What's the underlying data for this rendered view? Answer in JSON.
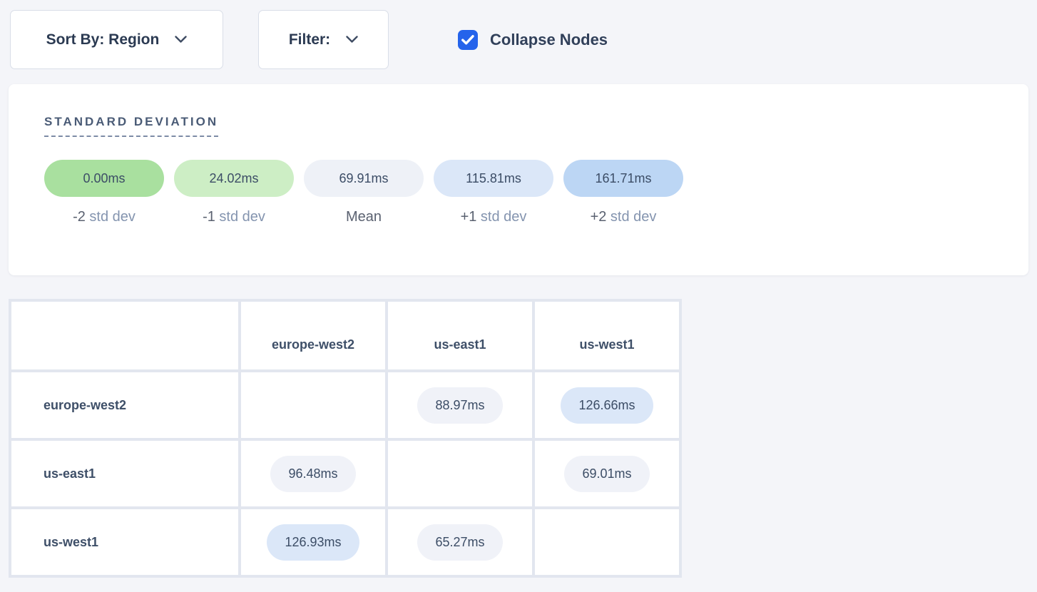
{
  "toolbar": {
    "sort_button": "Sort By: Region",
    "filter_button": "Filter:",
    "collapse_checkbox": {
      "label": "Collapse Nodes",
      "checked": true
    }
  },
  "legend": {
    "title": "STANDARD DEVIATION",
    "items": [
      {
        "value": "0.00ms",
        "bg": "#a9e09f",
        "label_strong": "-2",
        "label_muted": "std dev"
      },
      {
        "value": "24.02ms",
        "bg": "#cdeec5",
        "label_strong": "-1",
        "label_muted": "std dev"
      },
      {
        "value": "69.91ms",
        "bg": "#eef1f7",
        "label_strong": "Mean",
        "label_muted": ""
      },
      {
        "value": "115.81ms",
        "bg": "#dbe7f8",
        "label_strong": "+1",
        "label_muted": "std dev"
      },
      {
        "value": "161.71ms",
        "bg": "#bcd6f4",
        "label_strong": "+2",
        "label_muted": "std dev"
      }
    ]
  },
  "matrix": {
    "columns": [
      "europe-west2",
      "us-east1",
      "us-west1"
    ],
    "rows": [
      {
        "label": "europe-west2",
        "cells": [
          null,
          {
            "value": "88.97ms",
            "bg": "#f0f2f8"
          },
          {
            "value": "126.66ms",
            "bg": "#dbe7f8"
          }
        ]
      },
      {
        "label": "us-east1",
        "cells": [
          {
            "value": "96.48ms",
            "bg": "#f0f2f8"
          },
          null,
          {
            "value": "69.01ms",
            "bg": "#f0f2f8"
          }
        ]
      },
      {
        "label": "us-west1",
        "cells": [
          {
            "value": "126.93ms",
            "bg": "#dbe7f8"
          },
          {
            "value": "65.27ms",
            "bg": "#f0f2f8"
          },
          null
        ]
      }
    ]
  },
  "colors": {
    "page_bg": "#f4f5f9",
    "accent_blue": "#2563eb",
    "cell_gap": "#e2e6ef"
  }
}
